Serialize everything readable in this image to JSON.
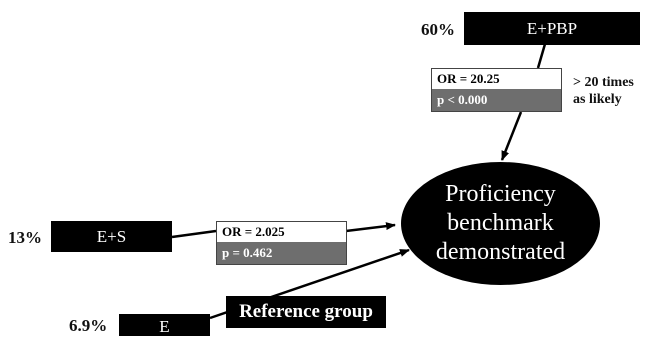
{
  "groups": {
    "pbp": {
      "pct": "60%",
      "label": "E+PBP"
    },
    "s": {
      "pct": "13%",
      "label": "E+S"
    },
    "e": {
      "pct": "6.9%",
      "label": "E"
    }
  },
  "stats": {
    "pbp": {
      "or": "OR = 20.25",
      "p": "p < 0.000"
    },
    "s": {
      "or": "OR = 2.025",
      "p": "p = 0.462"
    }
  },
  "note": "> 20 times\nas likely",
  "outcome": {
    "label": "Proficiency\nbenchmark\ndemonstrated"
  },
  "reference_label": "Reference group"
}
